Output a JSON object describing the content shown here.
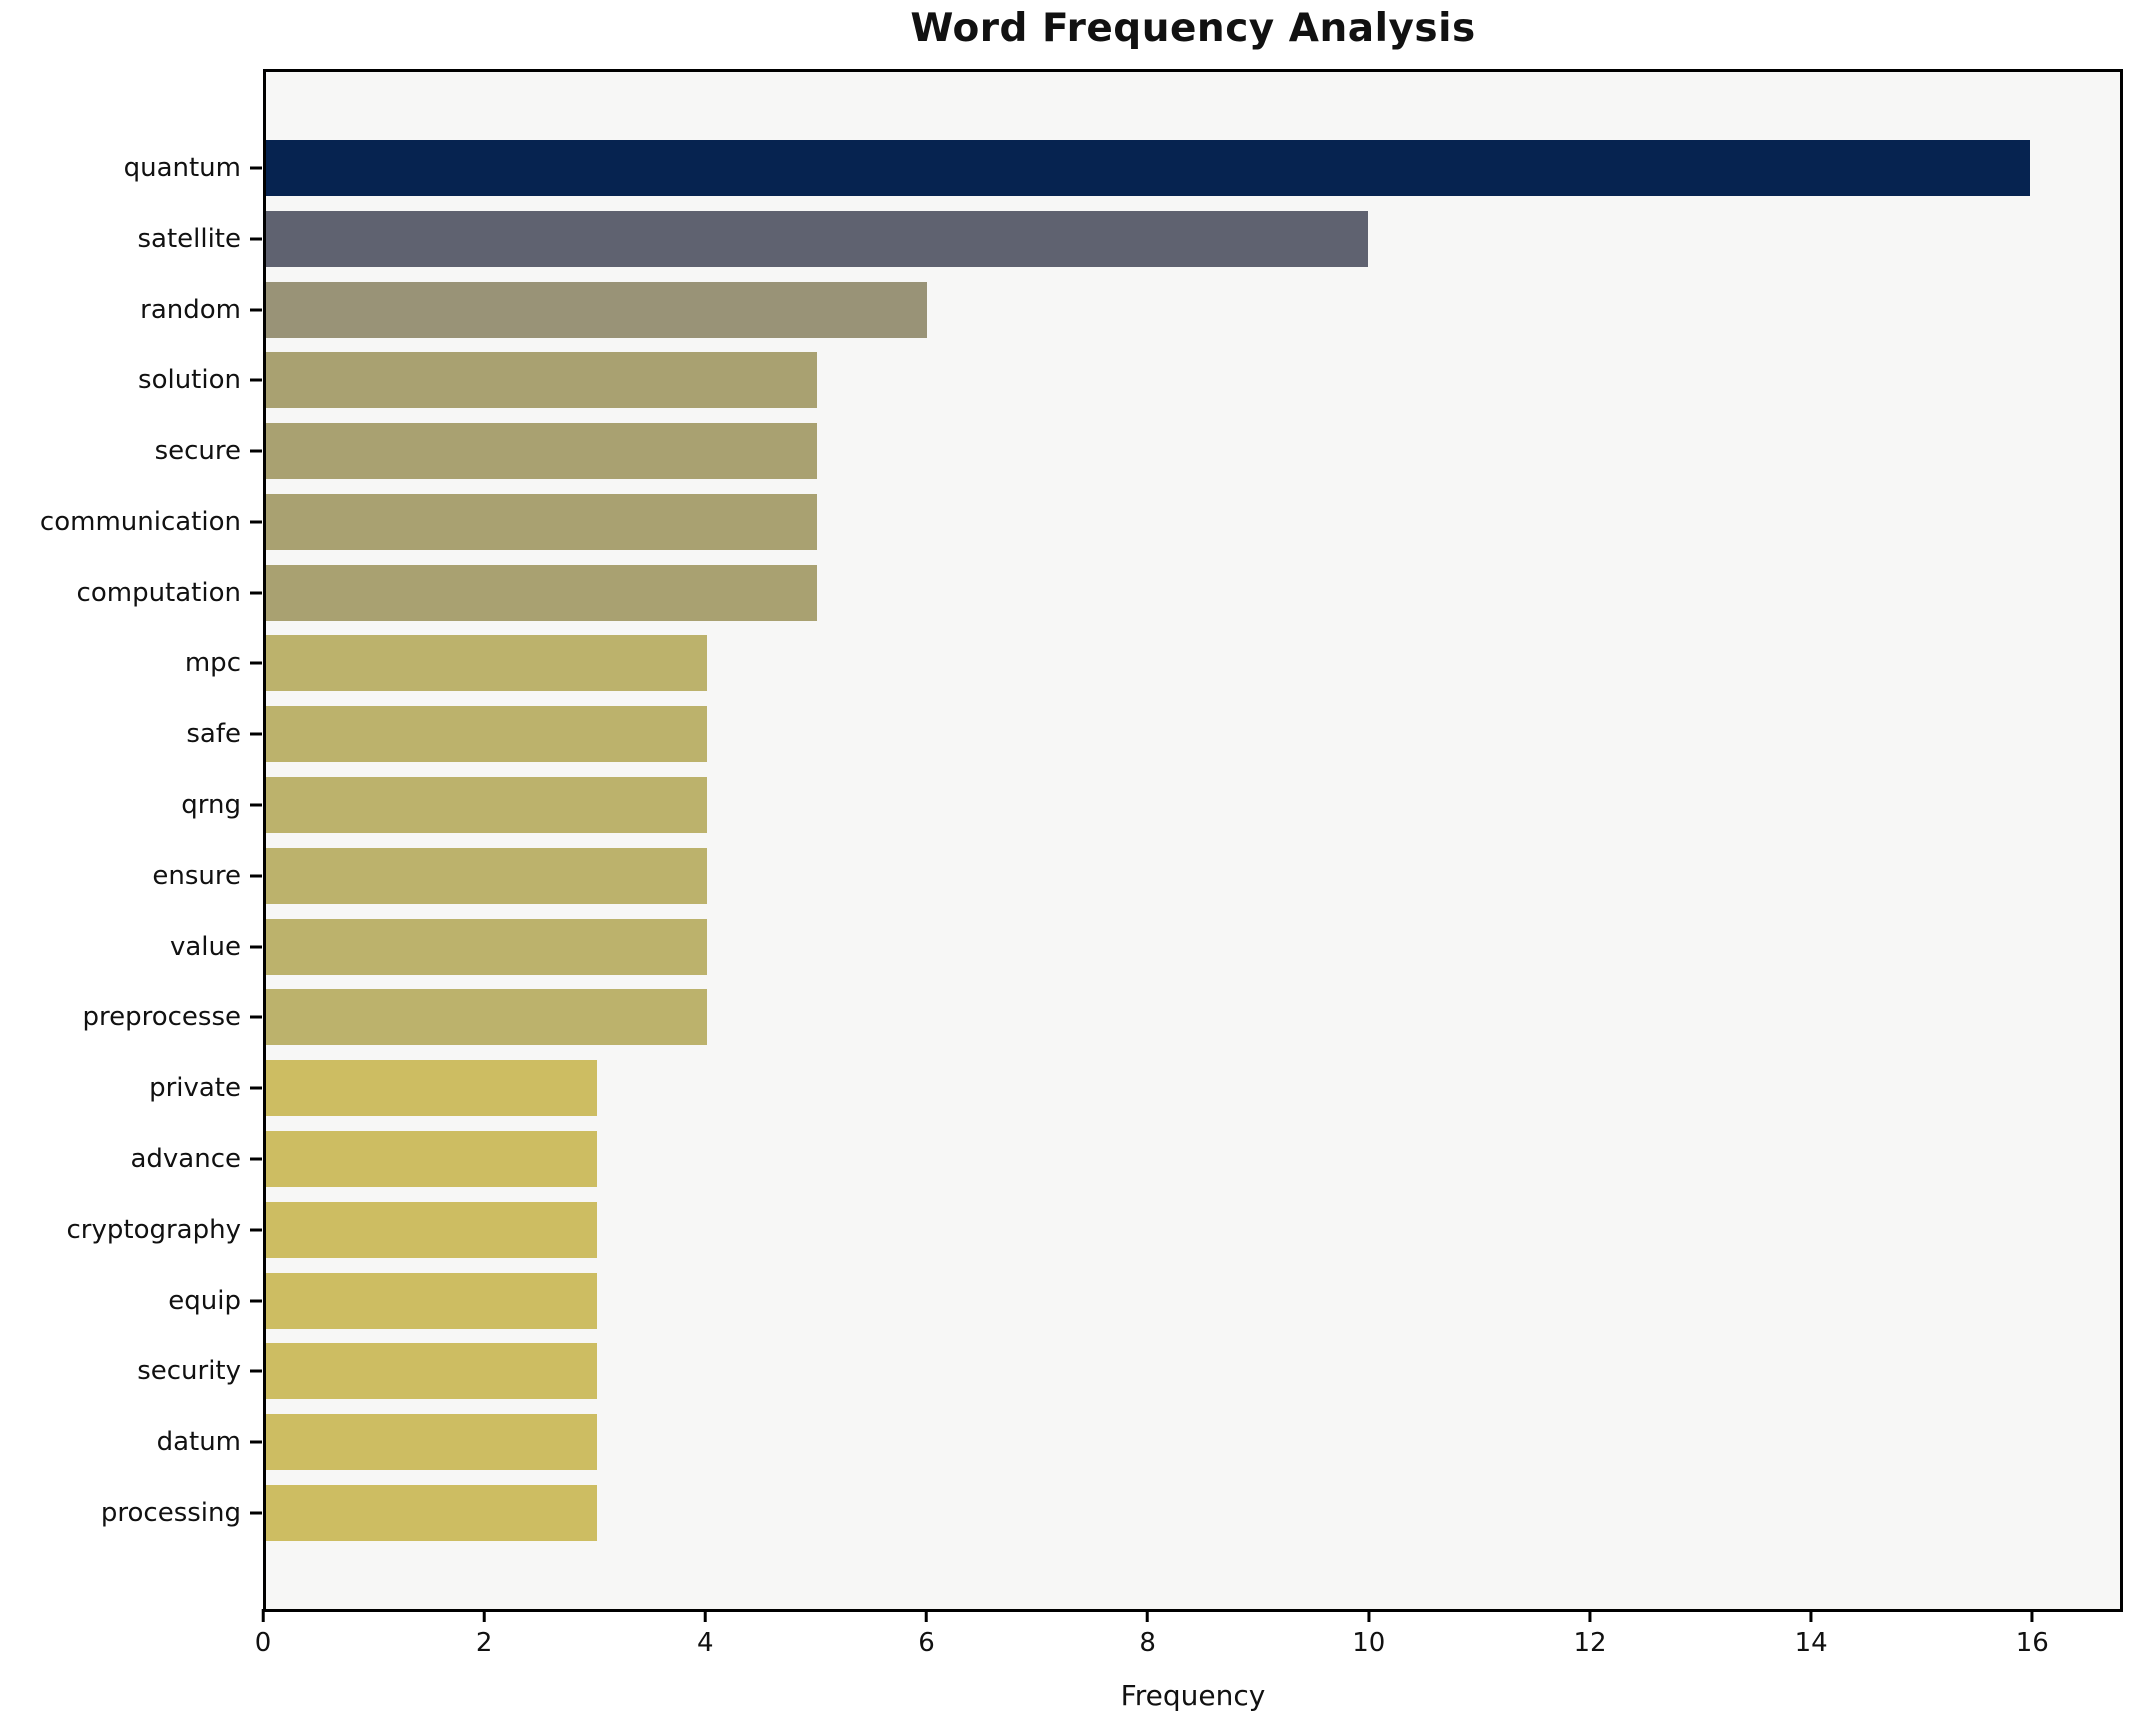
{
  "chart_data": {
    "type": "bar",
    "orientation": "horizontal",
    "title": "Word Frequency Analysis",
    "xlabel": "Frequency",
    "ylabel": "",
    "xlim": [
      0,
      16.82
    ],
    "xticks": [
      0,
      2,
      4,
      6,
      8,
      10,
      12,
      14,
      16
    ],
    "grid": false,
    "legend": false,
    "plot_background": "#f7f7f6",
    "spine_color": "#000000",
    "categories": [
      "quantum",
      "satellite",
      "random",
      "solution",
      "secure",
      "communication",
      "computation",
      "mpc",
      "safe",
      "qrng",
      "ensure",
      "value",
      "preprocesse",
      "private",
      "advance",
      "cryptography",
      "equip",
      "security",
      "datum",
      "processing"
    ],
    "values": [
      16,
      10,
      6,
      5,
      5,
      5,
      5,
      4,
      4,
      4,
      4,
      4,
      4,
      3,
      3,
      3,
      3,
      3,
      3,
      3
    ],
    "bar_colors": [
      "#062350",
      "#5f6270",
      "#999377",
      "#a9a171",
      "#a9a171",
      "#a9a171",
      "#a9a171",
      "#bcb26c",
      "#bcb26c",
      "#bcb26c",
      "#bcb26c",
      "#bcb26c",
      "#bcb26c",
      "#cdbd62",
      "#cdbd62",
      "#cdbd62",
      "#cdbd62",
      "#cdbd62",
      "#cdbd62",
      "#cdbd62"
    ]
  }
}
